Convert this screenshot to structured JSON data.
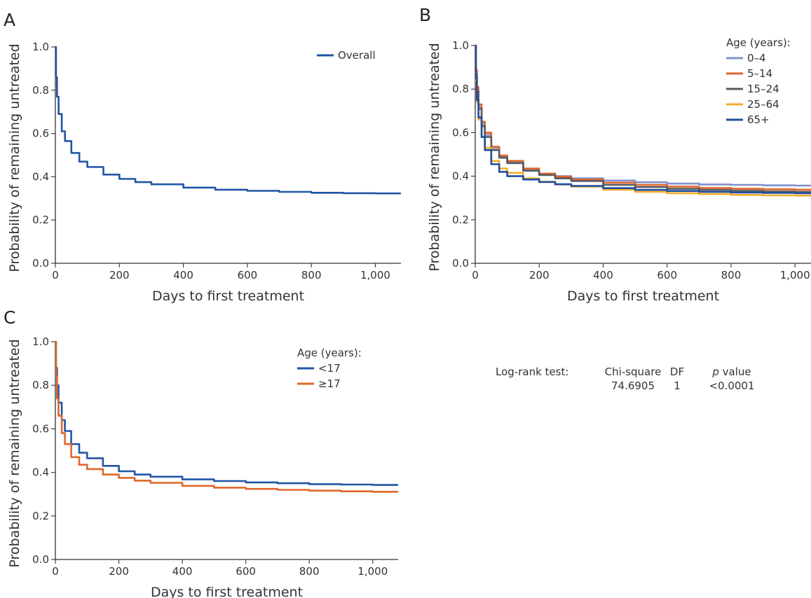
{
  "colors": {
    "overall": "#2155a5",
    "age_0_4": "#8090cc",
    "age_5_14": "#e0662a",
    "age_15_24": "#555a62",
    "age_25_64": "#f2ac2c",
    "age_65_plus": "#1f4d9c",
    "lt17": "#2155a5",
    "ge17": "#e0662a"
  },
  "chart_data": [
    {
      "panel": "A",
      "type": "line",
      "step": true,
      "xlabel": "Days to first treatment",
      "ylabel": "Probability of remaining untreated",
      "xlim": [
        0,
        1080
      ],
      "ylim": [
        0,
        1.0
      ],
      "xticks": [
        "0",
        "200",
        "400",
        "600",
        "800",
        "1,000"
      ],
      "yticks": [
        "0.0",
        "0.2",
        "0.4",
        "0.6",
        "0.8",
        "1.0"
      ],
      "legend_title": "",
      "legend_position": "top-right",
      "x": [
        0,
        2,
        5,
        10,
        20,
        30,
        50,
        75,
        100,
        150,
        200,
        250,
        300,
        400,
        500,
        600,
        700,
        800,
        900,
        1000,
        1080
      ],
      "series": [
        {
          "name": "Overall",
          "color_key": "overall",
          "values": [
            1.0,
            0.86,
            0.77,
            0.69,
            0.61,
            0.565,
            0.51,
            0.47,
            0.445,
            0.41,
            0.39,
            0.375,
            0.365,
            0.35,
            0.34,
            0.335,
            0.33,
            0.326,
            0.324,
            0.323,
            0.322
          ]
        }
      ]
    },
    {
      "panel": "B",
      "type": "line",
      "step": true,
      "xlabel": "Days to first treatment",
      "ylabel": "Probability of remaining untreated",
      "xlim": [
        0,
        1050
      ],
      "ylim": [
        0,
        1.0
      ],
      "xticks": [
        "0",
        "200",
        "400",
        "600",
        "800",
        "1,000"
      ],
      "yticks": [
        "0.0",
        "0.2",
        "0.4",
        "0.6",
        "0.8",
        "1.0"
      ],
      "legend_title": "Age (years):",
      "legend_position": "top-right",
      "x": [
        0,
        2,
        5,
        10,
        20,
        30,
        50,
        75,
        100,
        150,
        200,
        250,
        300,
        400,
        500,
        600,
        700,
        800,
        900,
        1000,
        1050
      ],
      "series": [
        {
          "name": "0–4",
          "color_key": "age_0_4",
          "values": [
            1.0,
            0.88,
            0.8,
            0.72,
            0.64,
            0.59,
            0.53,
            0.49,
            0.465,
            0.43,
            0.41,
            0.4,
            0.39,
            0.38,
            0.372,
            0.366,
            0.362,
            0.36,
            0.358,
            0.357,
            0.357
          ]
        },
        {
          "name": "5–14",
          "color_key": "age_5_14",
          "values": [
            1.0,
            0.89,
            0.81,
            0.73,
            0.65,
            0.6,
            0.535,
            0.495,
            0.47,
            0.435,
            0.412,
            0.398,
            0.385,
            0.37,
            0.36,
            0.352,
            0.346,
            0.342,
            0.34,
            0.338,
            0.338
          ]
        },
        {
          "name": "15–24",
          "color_key": "age_15_24",
          "values": [
            1.0,
            0.87,
            0.79,
            0.71,
            0.63,
            0.58,
            0.52,
            0.485,
            0.46,
            0.425,
            0.405,
            0.39,
            0.378,
            0.36,
            0.35,
            0.342,
            0.337,
            0.333,
            0.33,
            0.328,
            0.328
          ]
        },
        {
          "name": "25–64",
          "color_key": "age_25_64",
          "values": [
            1.0,
            0.84,
            0.74,
            0.66,
            0.58,
            0.53,
            0.47,
            0.435,
            0.415,
            0.39,
            0.375,
            0.362,
            0.352,
            0.338,
            0.328,
            0.322,
            0.318,
            0.314,
            0.312,
            0.311,
            0.311
          ]
        },
        {
          "name": "65+",
          "color_key": "age_65_plus",
          "values": [
            1.0,
            0.85,
            0.75,
            0.67,
            0.58,
            0.52,
            0.455,
            0.42,
            0.4,
            0.385,
            0.373,
            0.363,
            0.355,
            0.345,
            0.337,
            0.332,
            0.328,
            0.325,
            0.323,
            0.322,
            0.322
          ]
        }
      ]
    },
    {
      "panel": "C",
      "type": "line",
      "step": true,
      "xlabel": "Days to first treatment",
      "ylabel": "Probability of remaining untreated",
      "xlim": [
        0,
        1080
      ],
      "ylim": [
        0,
        1.0
      ],
      "xticks": [
        "0",
        "200",
        "400",
        "600",
        "800",
        "1,000"
      ],
      "yticks": [
        "0.0",
        "0.2",
        "0.4",
        "0.6",
        "0.8",
        "1.0"
      ],
      "legend_title": "Age (years):",
      "legend_position": "top-right",
      "x": [
        0,
        2,
        5,
        10,
        20,
        30,
        50,
        75,
        100,
        150,
        200,
        250,
        300,
        400,
        500,
        600,
        700,
        800,
        900,
        1000,
        1080
      ],
      "series": [
        {
          "name": "<17",
          "color_key": "lt17",
          "values": [
            1.0,
            0.88,
            0.8,
            0.72,
            0.64,
            0.59,
            0.53,
            0.49,
            0.465,
            0.43,
            0.405,
            0.39,
            0.38,
            0.368,
            0.36,
            0.354,
            0.35,
            0.346,
            0.344,
            0.342,
            0.341
          ]
        },
        {
          "name": "≥17",
          "color_key": "ge17",
          "values": [
            1.0,
            0.84,
            0.74,
            0.66,
            0.58,
            0.53,
            0.47,
            0.435,
            0.415,
            0.39,
            0.375,
            0.362,
            0.352,
            0.338,
            0.33,
            0.324,
            0.32,
            0.316,
            0.313,
            0.311,
            0.31
          ]
        }
      ]
    }
  ],
  "logrank": {
    "label": "Log-rank test:",
    "headers": {
      "chi": "Chi-square",
      "df": "DF",
      "p_italic": "p",
      "p_rest": " value"
    },
    "values": {
      "chi": "74.6905",
      "df": "1",
      "p": "<0.0001"
    }
  }
}
